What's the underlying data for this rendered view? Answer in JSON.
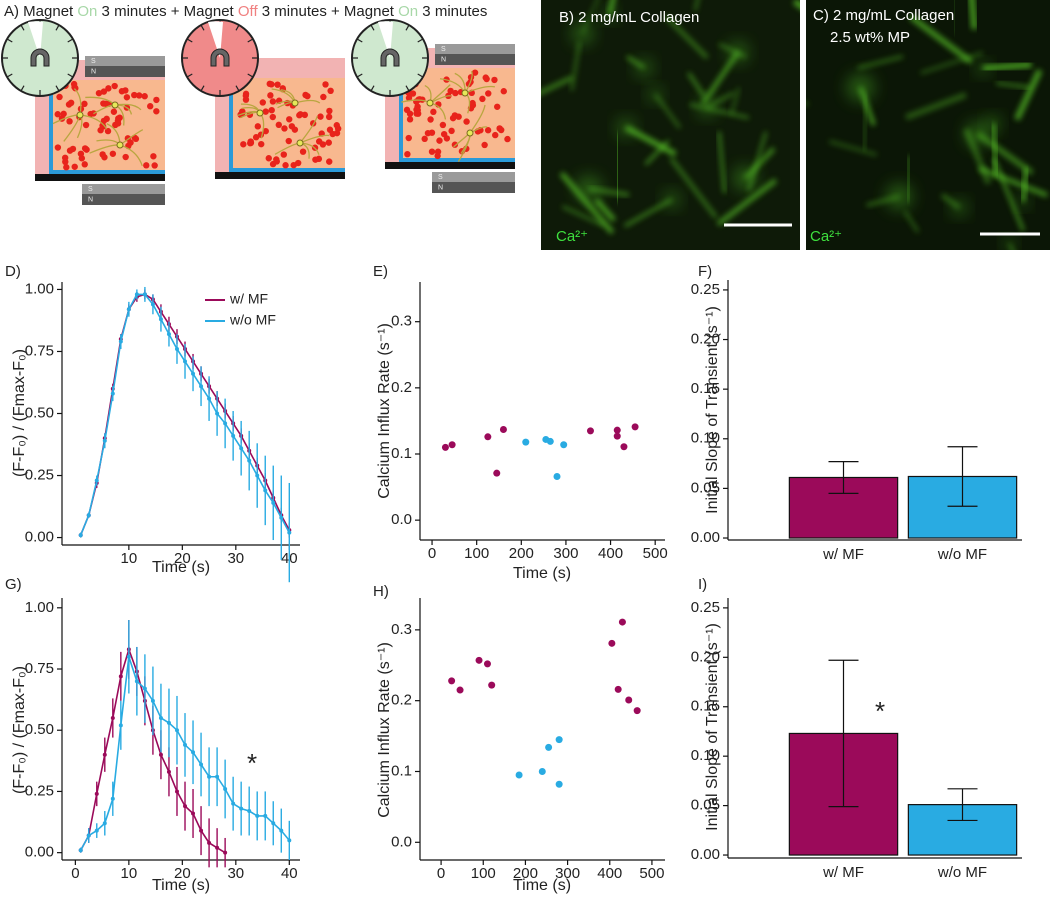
{
  "panel_a": {
    "title": [
      {
        "text": "A) Magnet ",
        "color": "#222222"
      },
      {
        "text": "On",
        "color": "#a8d8a8"
      },
      {
        "text": " 3 minutes + Magnet ",
        "color": "#222222"
      },
      {
        "text": "Off",
        "color": "#f08080"
      },
      {
        "text": " 3 minutes + Magnet ",
        "color": "#222222"
      },
      {
        "text": "On",
        "color": "#a8d8a8"
      },
      {
        "text": " 3 minutes",
        "color": "#222222"
      }
    ],
    "magnet_labels": [
      "S",
      "N"
    ]
  },
  "panel_b": {
    "label": "B) 2 mg/mL Collagen",
    "stain": "Ca²⁺"
  },
  "panel_c": {
    "label": "C) 2 mg/mL Collagen",
    "sublabel": "2.5 wt% MP",
    "stain": "Ca²⁺"
  },
  "chart_data": [
    {
      "type": "line",
      "panel": "D)",
      "x_label": "Time (s)",
      "y_label": "(F-F₀) / (Fmax-F₀)",
      "legend": "upper right",
      "x": [
        1,
        2.5,
        4,
        5.5,
        7,
        8.5,
        10,
        11.5,
        13,
        14.5,
        16,
        17.5,
        19,
        20.5,
        22,
        23.5,
        25,
        26.5,
        28,
        29.5,
        31,
        32.5,
        34,
        35.5,
        37,
        38.5,
        40
      ],
      "xlim": [
        -2.5,
        42
      ],
      "xticks": [
        10,
        20,
        30,
        40
      ],
      "ylim": [
        -0.03,
        1.03
      ],
      "yticks": [
        {
          "value": 0,
          "label": "0.00"
        },
        0.25,
        {
          "value": 0.5,
          "label": "0.50"
        },
        0.75,
        {
          "value": 1,
          "label": "1.00"
        }
      ],
      "series": [
        {
          "name": "w/ MF",
          "color": "#9b0a5a",
          "values": [
            0.01,
            0.09,
            0.22,
            0.4,
            0.6,
            0.8,
            0.92,
            0.97,
            0.98,
            0.96,
            0.91,
            0.86,
            0.81,
            0.76,
            0.71,
            0.66,
            0.61,
            0.56,
            0.51,
            0.46,
            0.41,
            0.35,
            0.29,
            0.23,
            0.16,
            0.09,
            0.03
          ],
          "errors": [
            0.01,
            0.01,
            0.02,
            0.02,
            0.02,
            0.02,
            0.02,
            0.02,
            0.02,
            0.02,
            0.03,
            0.03,
            0.03,
            0.03,
            0.03,
            0.03,
            0.03,
            0.03,
            0.03,
            0.03,
            0.03,
            0.03,
            0.03,
            0.03,
            0.03,
            0.03,
            0.03
          ]
        },
        {
          "name": "w/o MF",
          "color": "#29abe2",
          "values": [
            0.01,
            0.09,
            0.23,
            0.39,
            0.58,
            0.79,
            0.92,
            0.98,
            0.98,
            0.94,
            0.88,
            0.82,
            0.76,
            0.71,
            0.66,
            0.61,
            0.56,
            0.5,
            0.46,
            0.41,
            0.36,
            0.31,
            0.25,
            0.19,
            0.14,
            0.08,
            0.02
          ],
          "errors": [
            0.01,
            0.01,
            0.02,
            0.03,
            0.03,
            0.03,
            0.03,
            0.02,
            0.03,
            0.04,
            0.05,
            0.05,
            0.06,
            0.07,
            0.07,
            0.08,
            0.09,
            0.09,
            0.1,
            0.1,
            0.11,
            0.12,
            0.13,
            0.14,
            0.15,
            0.17,
            0.2
          ]
        }
      ]
    },
    {
      "type": "scatter",
      "panel": "E)",
      "x_label": "Time (s)",
      "y_label": "Calcium Influx Rate (s⁻¹)",
      "xlim": [
        -27,
        522
      ],
      "xticks": [
        0,
        100,
        200,
        300,
        400,
        500
      ],
      "ylim": [
        -0.03,
        0.36
      ],
      "yticks": [
        {
          "value": 0,
          "label": "0.0"
        },
        0.1,
        0.2,
        0.3
      ],
      "series": [
        {
          "color": "#9b0a5a",
          "x": [
            30,
            45,
            125,
            145,
            160,
            355,
            415,
            415,
            430,
            455
          ],
          "values": [
            0.11,
            0.114,
            0.126,
            0.071,
            0.137,
            0.135,
            0.136,
            0.127,
            0.111,
            0.141
          ]
        },
        {
          "color": "#29abe2",
          "x": [
            210,
            255,
            265,
            280,
            295
          ],
          "values": [
            0.118,
            0.122,
            0.119,
            0.066,
            0.114
          ]
        }
      ]
    },
    {
      "type": "bar",
      "panel": "F)",
      "y_label": "Initial Slope of Transient (s⁻¹)",
      "categories": [
        "w/ MF",
        "w/o MF"
      ],
      "values": [
        0.061,
        0.062
      ],
      "errors": [
        0.016,
        0.03
      ],
      "colors": [
        "#9b0a5a",
        "#29abe2"
      ],
      "ylim": [
        -0.002,
        0.26
      ],
      "yticks": [
        {
          "value": 0,
          "label": "0.00"
        },
        0.05,
        {
          "value": 0.1,
          "label": "0.10"
        },
        0.15,
        {
          "value": 0.2,
          "label": "0.20"
        },
        0.25
      ]
    },
    {
      "type": "line",
      "panel": "G)",
      "x_label": "Time (s)",
      "y_label": "(F-F₀) / (Fmax-F₀)",
      "annotation": "*",
      "x": [
        1,
        2.5,
        4,
        5.5,
        7,
        8.5,
        10,
        11.5,
        13,
        14.5,
        16,
        17.5,
        19,
        20.5,
        22,
        23.5,
        25,
        26.5,
        28,
        29.5,
        31,
        32.5,
        34,
        35.5,
        37,
        38.5,
        40
      ],
      "xlim": [
        -2.5,
        42
      ],
      "xticks": [
        0,
        10,
        20,
        30,
        40
      ],
      "ylim": [
        -0.03,
        1.04
      ],
      "yticks": [
        {
          "value": 0,
          "label": "0.00"
        },
        0.25,
        {
          "value": 0.5,
          "label": "0.50"
        },
        0.75,
        {
          "value": 1,
          "label": "1.00"
        }
      ],
      "series": [
        {
          "name": "w/ MF",
          "color": "#9b0a5a",
          "values": [
            0.01,
            0.07,
            0.24,
            0.4,
            0.55,
            0.72,
            0.83,
            0.74,
            0.62,
            0.5,
            0.4,
            0.33,
            0.25,
            0.19,
            0.16,
            0.09,
            0.04,
            0.02,
            0.0,
            null,
            null,
            null,
            null,
            null,
            null,
            null,
            null
          ],
          "errors": [
            0.01,
            0.03,
            0.05,
            0.07,
            0.08,
            0.1,
            0.12,
            0.1,
            0.1,
            0.1,
            0.1,
            0.1,
            0.1,
            0.1,
            0.1,
            0.1,
            0.1,
            0.08,
            0.06,
            null,
            null,
            null,
            null,
            null,
            null,
            null,
            null
          ]
        },
        {
          "name": "w/o MF",
          "color": "#29abe2",
          "values": [
            0.01,
            0.07,
            0.09,
            0.12,
            0.22,
            0.52,
            0.8,
            0.7,
            0.67,
            0.62,
            0.55,
            0.53,
            0.5,
            0.44,
            0.41,
            0.36,
            0.31,
            0.31,
            0.26,
            0.2,
            0.18,
            0.17,
            0.15,
            0.15,
            0.12,
            0.09,
            0.05
          ],
          "errors": [
            0.01,
            0.03,
            0.03,
            0.05,
            0.07,
            0.1,
            0.15,
            0.14,
            0.14,
            0.14,
            0.14,
            0.14,
            0.14,
            0.13,
            0.13,
            0.13,
            0.12,
            0.12,
            0.12,
            0.11,
            0.11,
            0.1,
            0.1,
            0.1,
            0.09,
            0.09,
            0.08
          ]
        }
      ]
    },
    {
      "type": "scatter",
      "panel": "H)",
      "x_label": "Time (s)",
      "y_label": "Calcium Influx Rate (s⁻¹)",
      "xlim": [
        -50,
        531
      ],
      "xticks": [
        0,
        100,
        200,
        300,
        400,
        500
      ],
      "ylim": [
        -0.025,
        0.345
      ],
      "yticks": [
        {
          "value": 0,
          "label": "0.0"
        },
        0.1,
        0.2,
        0.3
      ],
      "series": [
        {
          "color": "#9b0a5a",
          "x": [
            25,
            45,
            90,
            110,
            120,
            405,
            420,
            430,
            445,
            465
          ],
          "values": [
            0.228,
            0.215,
            0.257,
            0.252,
            0.222,
            0.281,
            0.216,
            0.311,
            0.201,
            0.186
          ]
        },
        {
          "color": "#29abe2",
          "x": [
            185,
            240,
            255,
            280,
            280
          ],
          "values": [
            0.095,
            0.1,
            0.134,
            0.145,
            0.082
          ]
        }
      ]
    },
    {
      "type": "bar",
      "panel": "I)",
      "y_label": "Initial Slope of Transient (s⁻¹)",
      "annotation": "*",
      "categories": [
        "w/ MF",
        "w/o MF"
      ],
      "values": [
        0.123,
        0.051
      ],
      "errors": [
        0.074,
        0.016
      ],
      "colors": [
        "#9b0a5a",
        "#29abe2"
      ],
      "ylim": [
        -0.003,
        0.26
      ],
      "yticks": [
        {
          "value": 0,
          "label": "0.00"
        },
        0.05,
        {
          "value": 0.1,
          "label": "0.10"
        },
        0.15,
        {
          "value": 0.2,
          "label": "0.20"
        },
        0.25
      ]
    }
  ]
}
